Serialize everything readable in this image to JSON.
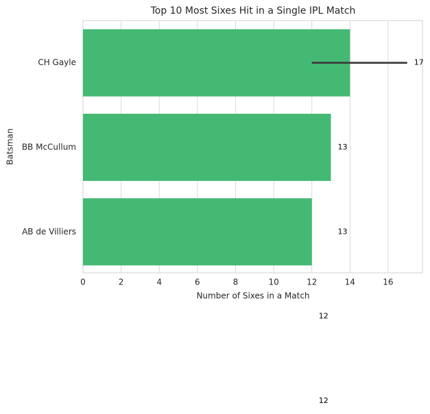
{
  "chart_data": {
    "type": "barh",
    "title": "Top 10 Most Sixes Hit in a Single IPL Match",
    "xlabel": "Number of Sixes in a Match",
    "ylabel": "Batsman",
    "categories": [
      "CH Gayle",
      "BB McCullum",
      "AB de Villiers"
    ],
    "values": [
      14,
      13,
      12
    ],
    "error_interval": [
      [
        12,
        17
      ],
      null,
      null
    ],
    "color": "#44b974",
    "annotations": [
      17,
      13,
      13,
      12,
      12
    ],
    "xlim": [
      0,
      17.8
    ],
    "xticks": [
      0,
      2,
      4,
      6,
      8,
      10,
      12,
      14,
      16
    ],
    "grid": true
  }
}
